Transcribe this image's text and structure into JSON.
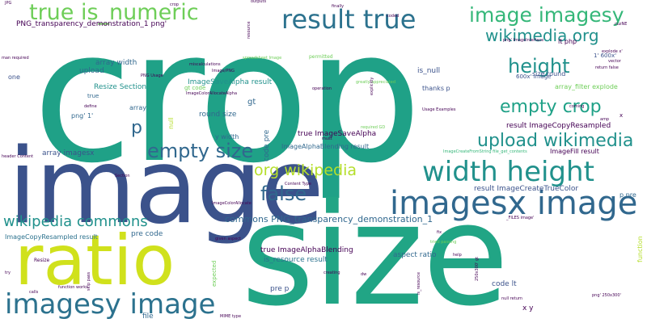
{
  "palette": {
    "background": "#ffffff",
    "dark_purple": "#440154",
    "indigo": "#3b528b",
    "blue": "#31688e",
    "teal_blue": "#2c728e",
    "teal": "#21918c",
    "green_teal": "#1fa187",
    "green": "#35b779",
    "lime_green": "#6ece58",
    "yellow_green": "#b5de2b",
    "yellow": "#d0e11c"
  },
  "words": [
    {
      "text": "crop"
    },
    {
      "text": "image"
    },
    {
      "text": "size"
    },
    {
      "text": "ratio"
    },
    {
      "text": "imagesy image"
    },
    {
      "text": "imagesx image"
    },
    {
      "text": "width height"
    },
    {
      "text": "true is_numeric"
    },
    {
      "text": "result true"
    },
    {
      "text": "image imagesy"
    },
    {
      "text": "wikimedia org"
    },
    {
      "text": "height"
    },
    {
      "text": "empty crop"
    },
    {
      "text": "upload wikimedia"
    },
    {
      "text": "empty size"
    },
    {
      "text": "org wikipedia"
    },
    {
      "text": "false"
    },
    {
      "text": "wikipedia commons"
    },
    {
      "text": "p"
    },
    {
      "text": "commons PNG_transparency_demonstration_1"
    },
    {
      "text": "PNG_transparency_demonstration_1 png'"
    },
    {
      "text": "result ImageCopyResampled"
    },
    {
      "text": "result ImageCreateTrueColor"
    },
    {
      "text": "array width"
    },
    {
      "text": "upload"
    },
    {
      "text": "Resize Section"
    },
    {
      "text": "ImageSaveAlpha result"
    },
    {
      "text": "array"
    },
    {
      "text": "round size"
    },
    {
      "text": "gt"
    },
    {
      "text": "true ImageSaveAlpha"
    },
    {
      "text": "ImageAlphaBlending result"
    },
    {
      "text": "array imagesx"
    },
    {
      "text": "code pre"
    },
    {
      "text": "pre code"
    },
    {
      "text": "ImageCopyResampled result"
    },
    {
      "text": "true ImageAlphaBlending"
    },
    {
      "text": "is_resource result"
    },
    {
      "text": "aspect ratio"
    },
    {
      "text": "code lt"
    },
    {
      "text": "pre p"
    },
    {
      "text": "file"
    },
    {
      "text": "x y"
    },
    {
      "text": "is_null"
    },
    {
      "text": "thanks p"
    },
    {
      "text": "size round"
    },
    {
      "text": "array_filter explode"
    },
    {
      "text": "ImageFill result"
    },
    {
      "text": "p pre"
    },
    {
      "text": "600x' image"
    },
    {
      "text": "1' 600x'"
    },
    {
      "text": "lt php"
    },
    {
      "text": "png' 1'"
    },
    {
      "text": "y width"
    },
    {
      "text": "one"
    },
    {
      "text": "true"
    },
    {
      "text": "null"
    },
    {
      "text": "Usage Examples"
    },
    {
      "text": "operation"
    },
    {
      "text": "gt code"
    },
    {
      "text": "permitted"
    },
    {
      "text": "coded"
    },
    {
      "text": "finally"
    },
    {
      "text": "outputs"
    },
    {
      "text": "JPG"
    },
    {
      "text": "man required"
    },
    {
      "text": "PNG Usage"
    },
    {
      "text": "define"
    },
    {
      "text": "Image/PNG"
    },
    {
      "text": "ImageColorAllocateAlpha"
    },
    {
      "text": "ImageCreateFromString file_get_contents"
    },
    {
      "text": "_FILES image'"
    },
    {
      "text": "header Content"
    },
    {
      "text": "Content Type"
    },
    {
      "text": "Section"
    },
    {
      "text": "ImageColorAllocate"
    },
    {
      "text": "Resize"
    },
    {
      "text": "given aspect"
    },
    {
      "text": "try"
    },
    {
      "text": "calls"
    },
    {
      "text": "function works"
    },
    {
      "text": "creating"
    },
    {
      "text": "help"
    },
    {
      "text": "tried passing"
    },
    {
      "text": "fix"
    },
    {
      "text": "MIME type"
    },
    {
      "text": "null return"
    },
    {
      "text": "png' 250x300'"
    },
    {
      "text": "explode x'"
    },
    {
      "text": "return false"
    },
    {
      "text": "vector"
    },
    {
      "text": "function"
    },
    {
      "text": "must"
    },
    {
      "text": "required GD"
    },
    {
      "text": "expected"
    },
    {
      "text": "skip pass"
    },
    {
      "text": "is_resource"
    },
    {
      "text": "250x300' gt"
    },
    {
      "text": "greatly appreciated"
    },
    {
      "text": "explicitly"
    },
    {
      "text": "miscalculations"
    },
    {
      "text": "resource"
    },
    {
      "text": "crop"
    },
    {
      "text": "png' ImageInterlace"
    },
    {
      "text": "cuzNE"
    },
    {
      "text": "coming"
    },
    {
      "text": "amp"
    },
    {
      "text": "x"
    },
    {
      "text": "dw"
    },
    {
      "text": "spreadsheet Image"
    }
  ]
}
